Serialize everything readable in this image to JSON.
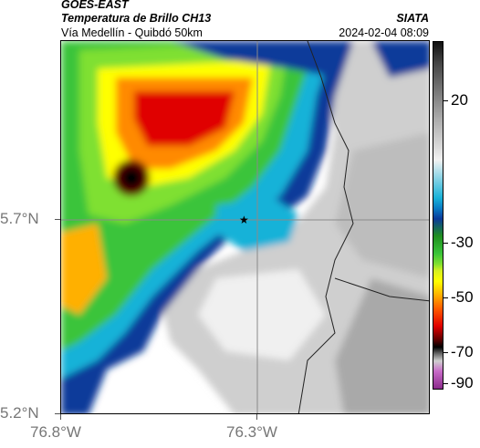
{
  "header": {
    "satellite": "GOES-EAST",
    "product": "Temperatura de Brillo CH13",
    "route": "Vía Medellín - Quibdó 50km",
    "org": "SIATA",
    "timestamp": "2024-02-04 08:09"
  },
  "map": {
    "lat_ticks": [
      "5.7°N",
      "5.2°N"
    ],
    "lon_ticks": [
      "76.8°W",
      "76.3°W"
    ],
    "marker": "star-marker"
  },
  "colorbar": {
    "ticks": [
      "20",
      "-30",
      "-50",
      "-70",
      "-90"
    ]
  },
  "colors": {
    "cold_cloud": "#000000",
    "warm_surface": "#d8d8d8",
    "cyan": "#19b2d8",
    "green": "#3ac43a",
    "yellow": "#ffff00",
    "red": "#e00000"
  }
}
